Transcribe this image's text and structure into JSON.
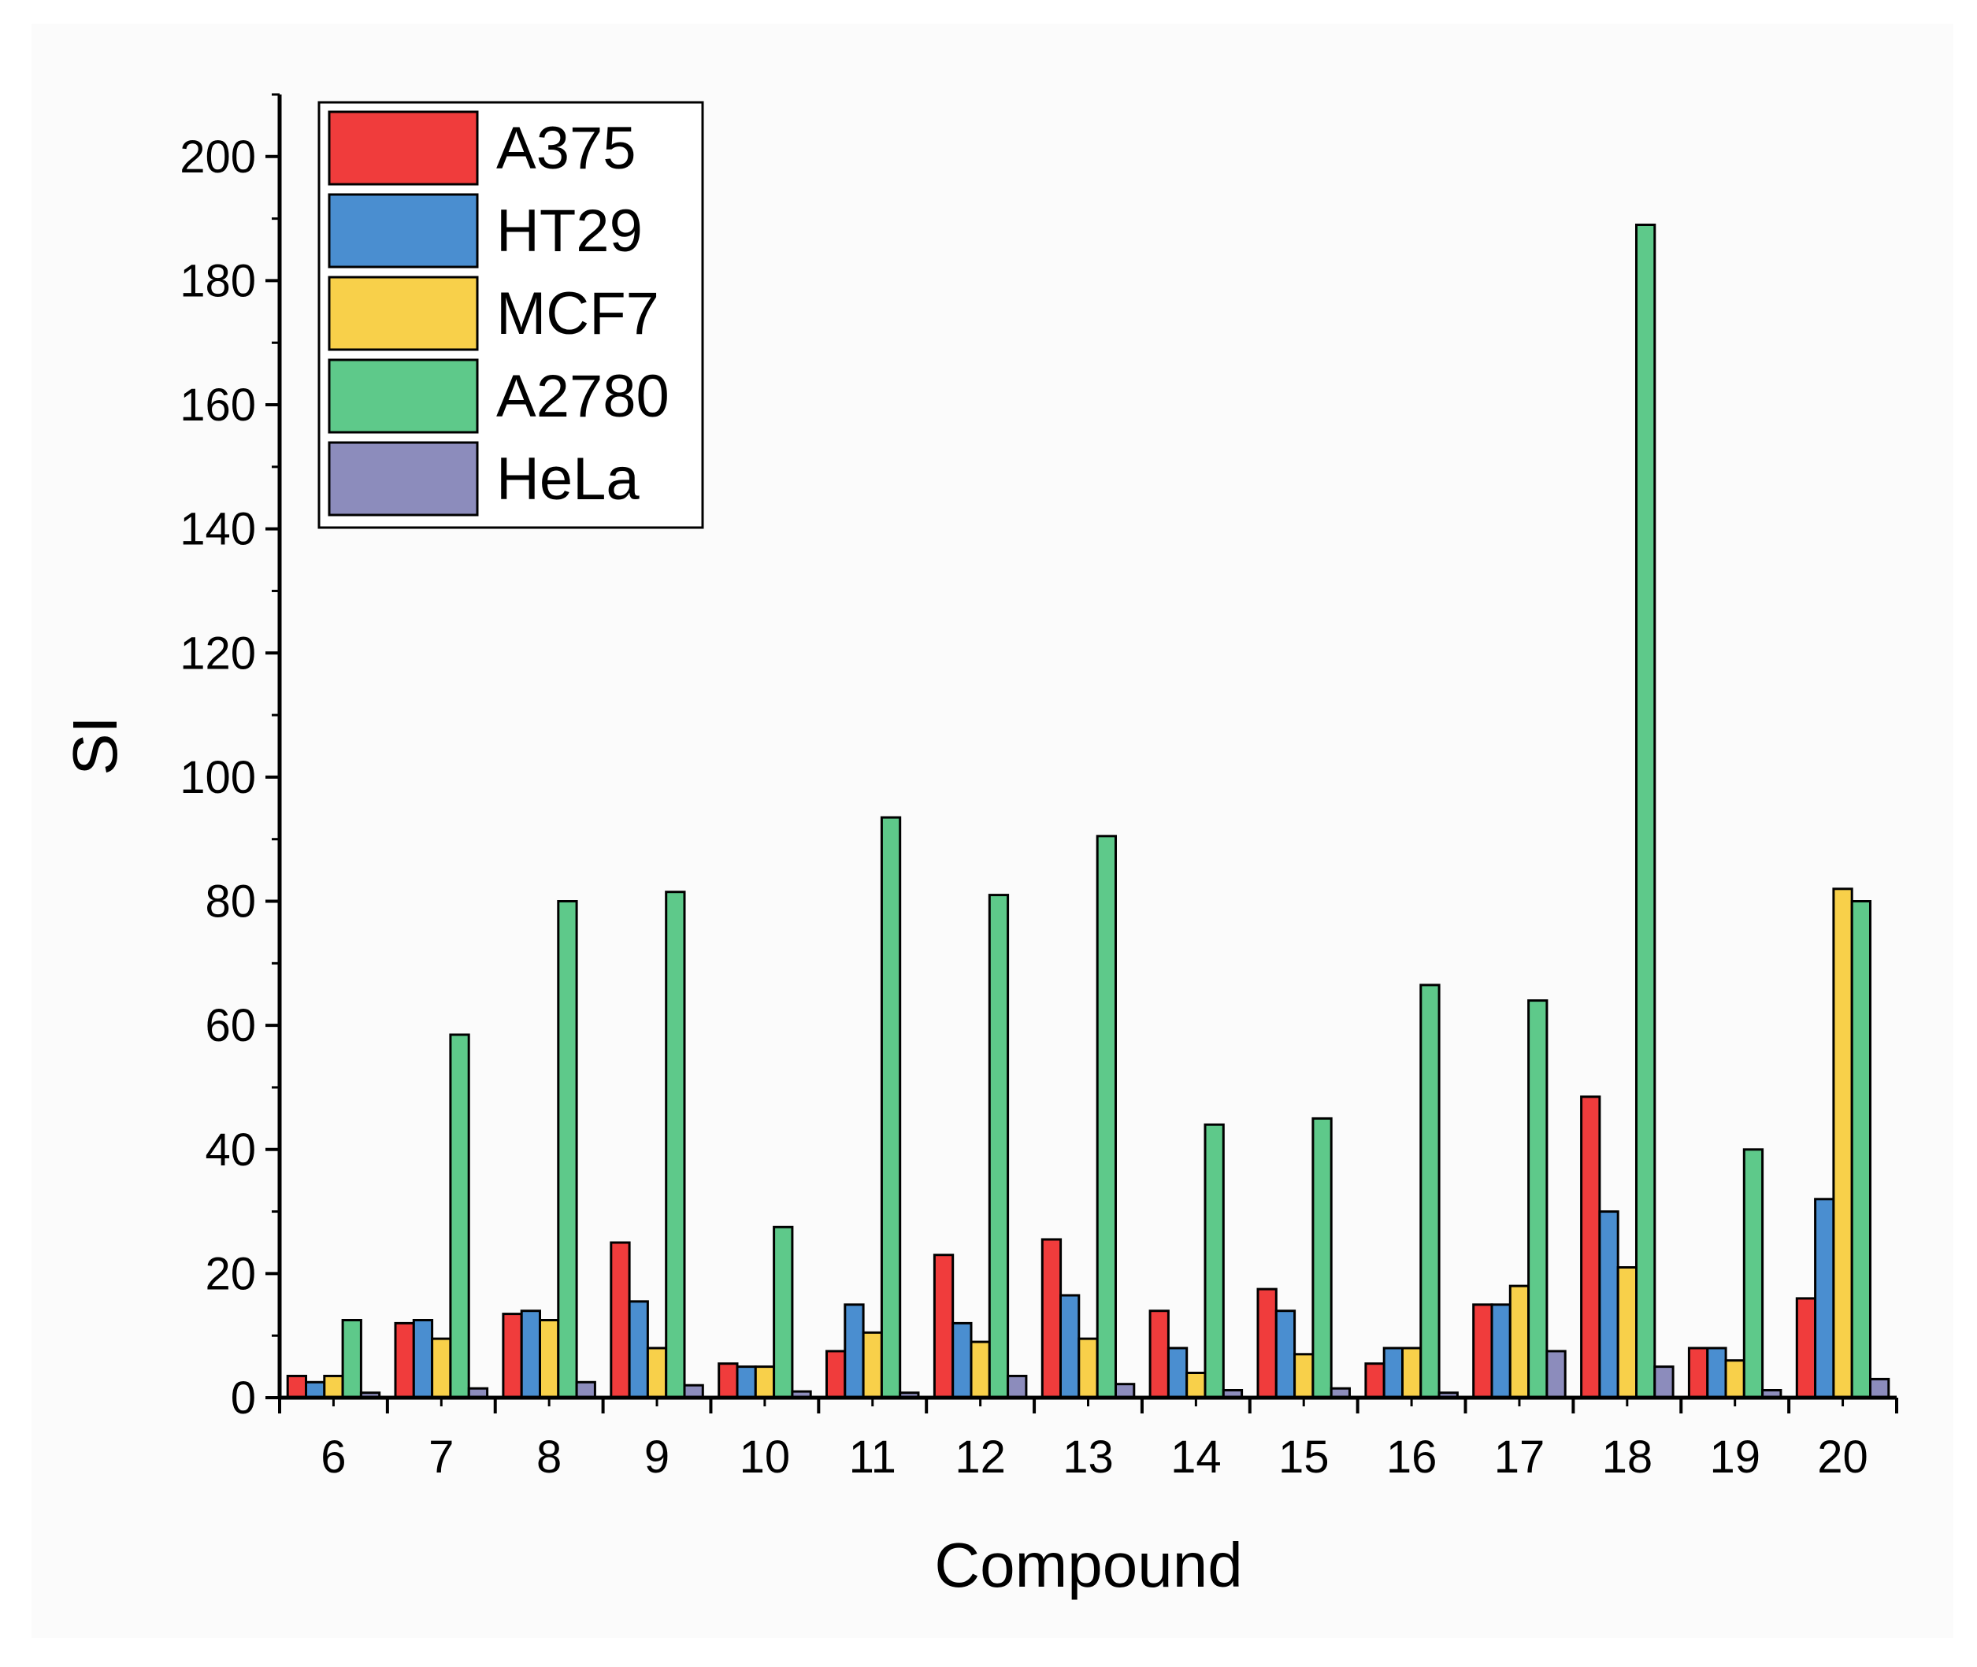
{
  "chart_data": {
    "type": "bar",
    "title": "",
    "xlabel": "Compound",
    "ylabel": "SI",
    "ylim": [
      0,
      210
    ],
    "yticks": [
      0,
      20,
      40,
      60,
      80,
      100,
      120,
      140,
      160,
      180,
      200
    ],
    "grid": false,
    "legend_position": "top-left",
    "categories": [
      "6",
      "7",
      "8",
      "9",
      "10",
      "11",
      "12",
      "13",
      "14",
      "15",
      "16",
      "17",
      "18",
      "19",
      "20"
    ],
    "series": [
      {
        "name": "A375",
        "color": "#f03c3c",
        "values": [
          3.5,
          12,
          13.5,
          25,
          5.5,
          7.5,
          23,
          25.5,
          14,
          17.5,
          5.5,
          15,
          48.5,
          8,
          16
        ]
      },
      {
        "name": "HT29",
        "color": "#4a8ed0",
        "values": [
          2.5,
          12.5,
          14,
          15.5,
          5,
          15,
          12,
          16.5,
          8,
          14,
          8,
          15,
          30,
          8,
          32
        ]
      },
      {
        "name": "MCF7",
        "color": "#f8d04a",
        "values": [
          3.5,
          9.5,
          12.5,
          8,
          5,
          10.5,
          9,
          9.5,
          4,
          7,
          8,
          18,
          21,
          6,
          82
        ]
      },
      {
        "name": "A2780",
        "color": "#5ec98a",
        "values": [
          12.5,
          58.5,
          80,
          81.5,
          27.5,
          93.5,
          81,
          90.5,
          44,
          45,
          66.5,
          64,
          189,
          40,
          80
        ]
      },
      {
        "name": "HeLa",
        "color": "#8c8cbc",
        "values": [
          0.8,
          1.5,
          2.5,
          2,
          1,
          0.8,
          3.5,
          2.2,
          1.2,
          1.5,
          0.8,
          7.5,
          5,
          1.2,
          3
        ]
      }
    ]
  }
}
